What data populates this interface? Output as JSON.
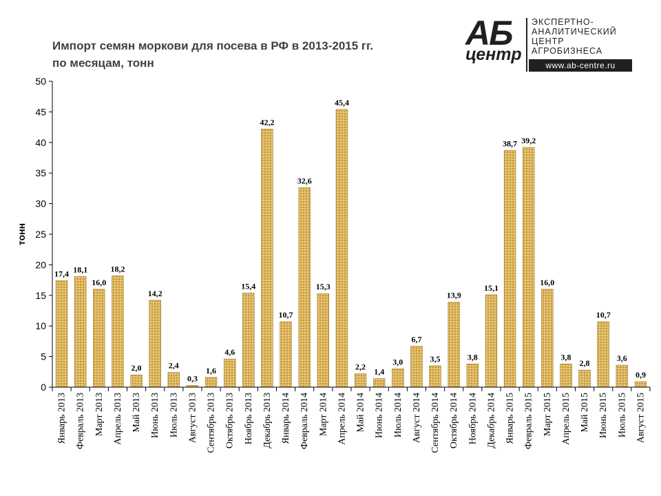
{
  "header": {
    "title_line1": "Импорт семян моркови для посева в РФ в 2013-2015 гг.",
    "title_line2": "по месяцам, тонн"
  },
  "logo": {
    "brand_top": "АБ",
    "brand_bottom": "центр",
    "text_lines": [
      "ЭКСПЕРТНО-",
      "АНАЛИТИЧЕСКИЙ",
      "ЦЕНТР",
      "АГРОБИЗНЕСА"
    ],
    "url": "www.ab-centre.ru"
  },
  "chart_data": {
    "type": "bar",
    "title": "Импорт семян моркови для посева в РФ в 2013-2015 гг. по месяцам, тонн",
    "xlabel": "",
    "ylabel": "тонн",
    "ylim": [
      0,
      50
    ],
    "yticks": [
      0,
      5,
      10,
      15,
      20,
      25,
      30,
      35,
      40,
      45,
      50
    ],
    "grid": false,
    "legend": "none",
    "bar_color": "#d9b35a",
    "categories": [
      "Январь 2013",
      "Февраль 2013",
      "Март 2013",
      "Апрель 2013",
      "Май 2013",
      "Июнь 2013",
      "Июль 2013",
      "Август 2013",
      "Сентябрь 2013",
      "Октябрь 2013",
      "Ноябрь 2013",
      "Декабрь 2013",
      "Январь 2014",
      "Февраль 2014",
      "Март 2014",
      "Апрель 2014",
      "Май 2014",
      "Июнь 2014",
      "Июль 2014",
      "Август 2014",
      "Сентябрь 2014",
      "Октябрь 2014",
      "Ноябрь 2014",
      "Декабрь 2014",
      "Январь 2015",
      "Февраль 2015",
      "Март 2015",
      "Апрель 2015",
      "Май 2015",
      "Июнь 2015",
      "Июль 2015",
      "Август 2015"
    ],
    "values": [
      17.4,
      18.1,
      16.0,
      18.2,
      2.0,
      14.2,
      2.4,
      0.3,
      1.6,
      4.6,
      15.4,
      42.2,
      10.7,
      32.6,
      15.3,
      45.4,
      2.2,
      1.4,
      3.0,
      6.7,
      3.5,
      13.9,
      3.8,
      15.1,
      38.7,
      39.2,
      16.0,
      3.8,
      2.8,
      10.7,
      3.6,
      0.9
    ],
    "data_labels": [
      "17,4",
      "18,1",
      "16,0",
      "18,2",
      "2,0",
      "14,2",
      "2,4",
      "0,3",
      "1,6",
      "4,6",
      "15,4",
      "42,2",
      "10,7",
      "32,6",
      "15,3",
      "45,4",
      "2,2",
      "1,4",
      "3,0",
      "6,7",
      "3,5",
      "13,9",
      "3,8",
      "15,1",
      "38,7",
      "39,2",
      "16,0",
      "3,8",
      "2,8",
      "10,7",
      "3,6",
      "0,9"
    ]
  }
}
